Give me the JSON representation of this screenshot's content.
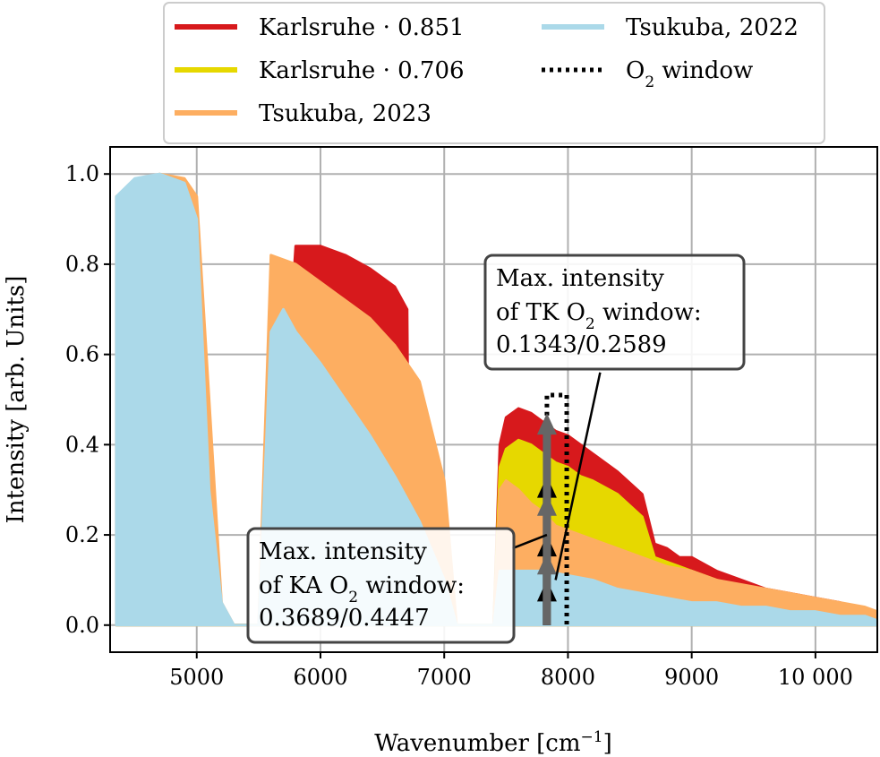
{
  "chart_data": {
    "type": "line",
    "xlabel": "Wavenumber [cm",
    "xlabel_sup": "−1",
    "xlabel_end": "]",
    "ylabel": "Intensity [arb. Units]",
    "xlim": [
      4300,
      10500
    ],
    "ylim": [
      -0.06,
      1.06
    ],
    "grid": true,
    "legend_placement": "top-center",
    "xticks": [
      5000,
      6000,
      7000,
      8000,
      9000,
      10000
    ],
    "xtick_labels": [
      "5000",
      "6000",
      "7000",
      "8000",
      "9000",
      "10 000"
    ],
    "yticks": [
      0.0,
      0.2,
      0.4,
      0.6,
      0.8,
      1.0
    ],
    "ytick_labels": [
      "0.0",
      "0.2",
      "0.4",
      "0.6",
      "0.8",
      "1.0"
    ],
    "colors": {
      "karlsruhe_0851": "#d7191c",
      "karlsruhe_0706": "#e6d800",
      "tsukuba_2023": "#fdae61",
      "tsukuba_2022": "#abd9e9",
      "o2_window": "#000000",
      "ka_arrow": "#000000",
      "tk_arrow": "#666666"
    },
    "series": [
      {
        "name": "Karlsruhe · 0.851",
        "key": "karlsruhe_0851",
        "x": [
          4350,
          4800,
          5100,
          5300,
          5600,
          5800,
          6000,
          6200,
          6400,
          6600,
          6700,
          6720,
          7100,
          7400,
          7450,
          7500,
          7600,
          7700,
          7800,
          7900,
          8000,
          8100,
          8200,
          8400,
          8600,
          8700,
          8800,
          8900,
          9000,
          9200,
          9400,
          9600,
          9800,
          10000,
          10200,
          10400,
          10500
        ],
        "y": [
          0.0,
          0.0,
          0.0,
          0.0,
          0.0,
          0.84,
          0.84,
          0.82,
          0.79,
          0.75,
          0.7,
          0.0,
          0.0,
          0.0,
          0.4,
          0.46,
          0.48,
          0.47,
          0.45,
          0.43,
          0.42,
          0.4,
          0.38,
          0.34,
          0.29,
          0.18,
          0.17,
          0.15,
          0.15,
          0.12,
          0.1,
          0.08,
          0.07,
          0.06,
          0.05,
          0.03,
          0.02
        ]
      },
      {
        "name": "Karlsruhe · 0.706",
        "key": "karlsruhe_0706",
        "x": [
          4350,
          4800,
          5100,
          5300,
          5600,
          5800,
          6000,
          6200,
          6400,
          6600,
          6700,
          6720,
          7100,
          7400,
          7450,
          7500,
          7600,
          7700,
          7800,
          7900,
          8000,
          8100,
          8200,
          8400,
          8600,
          8700,
          8800,
          8900,
          9000,
          9200,
          9400,
          9600,
          9800,
          10000,
          10200,
          10400,
          10500
        ],
        "y": [
          0.0,
          0.0,
          0.0,
          0.0,
          0.0,
          0.7,
          0.7,
          0.68,
          0.66,
          0.62,
          0.58,
          0.0,
          0.0,
          0.0,
          0.35,
          0.39,
          0.41,
          0.4,
          0.38,
          0.36,
          0.35,
          0.33,
          0.32,
          0.29,
          0.24,
          0.15,
          0.14,
          0.13,
          0.12,
          0.1,
          0.08,
          0.07,
          0.06,
          0.05,
          0.04,
          0.03,
          0.02
        ]
      },
      {
        "name": "Tsukuba, 2023",
        "key": "tsukuba_2023",
        "x": [
          4350,
          4500,
          4700,
          4900,
          5000,
          5100,
          5200,
          5300,
          5500,
          5600,
          5800,
          6000,
          6200,
          6400,
          6600,
          6800,
          7000,
          7100,
          7400,
          7450,
          7500,
          7600,
          7700,
          7800,
          7900,
          8000,
          8200,
          8400,
          8600,
          8800,
          9000,
          9200,
          9400,
          9600,
          9800,
          10000,
          10200,
          10400,
          10500
        ],
        "y": [
          0.95,
          0.98,
          1.0,
          0.99,
          0.95,
          0.5,
          0.05,
          0.0,
          0.0,
          0.82,
          0.8,
          0.76,
          0.72,
          0.68,
          0.62,
          0.54,
          0.32,
          0.0,
          0.0,
          0.3,
          0.32,
          0.3,
          0.27,
          0.25,
          0.22,
          0.21,
          0.19,
          0.17,
          0.15,
          0.13,
          0.12,
          0.1,
          0.09,
          0.08,
          0.07,
          0.06,
          0.05,
          0.04,
          0.03
        ]
      },
      {
        "name": "Tsukuba, 2022",
        "key": "tsukuba_2022",
        "x": [
          4350,
          4500,
          4700,
          4900,
          5000,
          5100,
          5200,
          5300,
          5500,
          5600,
          5700,
          5800,
          6000,
          6200,
          6400,
          6600,
          6800,
          7000,
          7100,
          7400,
          7450,
          7600,
          7800,
          8000,
          8200,
          8400,
          8600,
          8800,
          9000,
          9200,
          9400,
          9600,
          9800,
          10000,
          10200,
          10400,
          10500
        ],
        "y": [
          0.95,
          0.99,
          1.0,
          0.98,
          0.9,
          0.3,
          0.05,
          0.0,
          0.0,
          0.65,
          0.7,
          0.65,
          0.58,
          0.5,
          0.42,
          0.33,
          0.23,
          0.1,
          0.0,
          0.0,
          0.12,
          0.12,
          0.12,
          0.11,
          0.1,
          0.08,
          0.07,
          0.06,
          0.05,
          0.05,
          0.04,
          0.04,
          0.03,
          0.03,
          0.02,
          0.02,
          0.01
        ]
      }
    ],
    "o2_window": {
      "name": "O₂ window",
      "name_base": "O",
      "name_sub": "2",
      "name_rest": " window",
      "x": [
        7830,
        7830,
        7990,
        7990
      ],
      "y": [
        0.0,
        0.51,
        0.51,
        0.0
      ]
    },
    "arrows": [
      {
        "key": "ka_arrow",
        "x": 7830,
        "y_from": 0.0,
        "y_to": 0.1
      },
      {
        "key": "ka_arrow",
        "x": 7830,
        "y_from": 0.0,
        "y_to": 0.2
      },
      {
        "key": "ka_arrow",
        "x": 7830,
        "y_from": 0.0,
        "y_to": 0.33
      },
      {
        "key": "tk_arrow",
        "x": 7830,
        "y_from": 0.0,
        "y_to": 0.16
      },
      {
        "key": "tk_arrow",
        "x": 7830,
        "y_from": 0.0,
        "y_to": 0.29
      },
      {
        "key": "tk_arrow",
        "x": 7830,
        "y_from": 0.0,
        "y_to": 0.47
      }
    ],
    "annotations": [
      {
        "id": "tk",
        "line1": "Max. intensity",
        "line2_pre": "of TK O",
        "line2_sub": "2",
        "line2_post": " window:",
        "line3": "0.1343/0.2589",
        "pointer_from": [
          8260,
          0.56
        ],
        "pointer_to": [
          7900,
          0.1
        ]
      },
      {
        "id": "ka",
        "line1": "Max. intensity",
        "line2_pre": "of KA O",
        "line2_sub": "2",
        "line2_post": " window:",
        "line3": "0.3689/0.4447",
        "pointer_from": [
          7550,
          0.17
        ],
        "pointer_to": [
          7830,
          0.2
        ]
      }
    ]
  },
  "legend": {
    "columns": [
      [
        {
          "key": "karlsruhe_0851",
          "label": "Karlsruhe · 0.851",
          "style": "solid"
        },
        {
          "key": "karlsruhe_0706",
          "label": "Karlsruhe · 0.706",
          "style": "solid"
        },
        {
          "key": "tsukuba_2023",
          "label": "Tsukuba, 2023",
          "style": "solid"
        }
      ],
      [
        {
          "key": "tsukuba_2022",
          "label": "Tsukuba, 2022",
          "style": "solid"
        },
        {
          "key": "o2_window",
          "label": "O₂ window",
          "style": "dotted"
        }
      ]
    ]
  }
}
